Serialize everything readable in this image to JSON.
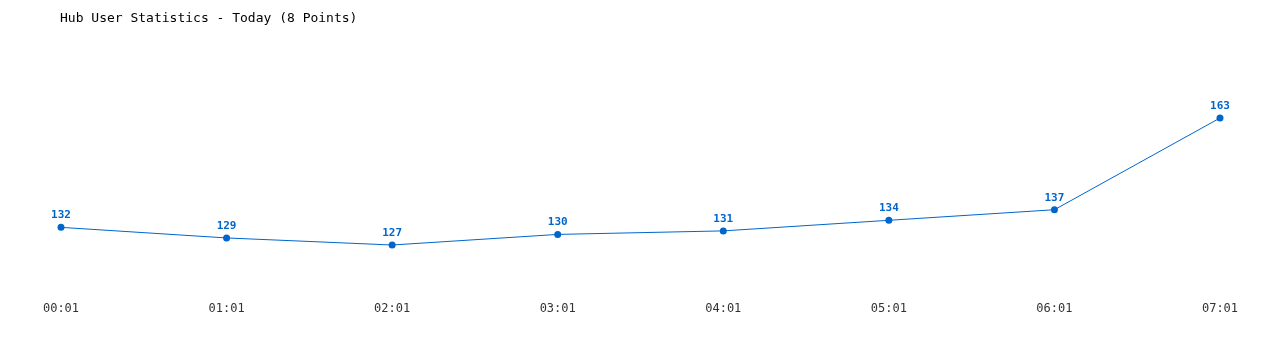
{
  "chart_data": {
    "type": "line",
    "title": "Hub User Statistics - Today (8 Points)",
    "categories": [
      "00:01",
      "01:01",
      "02:01",
      "03:01",
      "04:01",
      "05:01",
      "06:01",
      "07:01"
    ],
    "series": [
      {
        "color": "#0066cc",
        "values": [
          132,
          129,
          127,
          130,
          131,
          134,
          137,
          163
        ]
      }
    ],
    "data_labels": true,
    "marker": "circle",
    "line_style": "solid"
  }
}
